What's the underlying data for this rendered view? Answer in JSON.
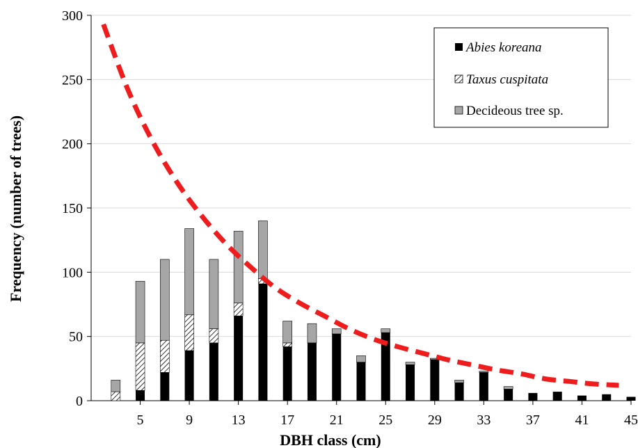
{
  "chart_data": {
    "type": "bar",
    "stacked": true,
    "xlabel": "DBH class (cm)",
    "ylabel": "Frequency (number of trees)",
    "ylim": [
      0,
      300
    ],
    "y_ticks": [
      0,
      50,
      100,
      150,
      200,
      250,
      300
    ],
    "x_tick_labels": [
      "5",
      "9",
      "13",
      "17",
      "21",
      "25",
      "29",
      "33",
      "37",
      "41",
      "45"
    ],
    "categories": [
      3,
      5,
      7,
      9,
      11,
      13,
      15,
      17,
      19,
      21,
      23,
      25,
      27,
      29,
      31,
      33,
      35,
      37,
      39,
      41,
      43,
      45
    ],
    "grid": "horizontal",
    "legend_position": "top-right",
    "series": [
      {
        "name": "Abies koreana",
        "italic": true,
        "pattern": "solid",
        "color": "#000000",
        "values": [
          0,
          8,
          22,
          39,
          45,
          66,
          91,
          42,
          45,
          52,
          30,
          53,
          28,
          32,
          14,
          22,
          9,
          6,
          7,
          4,
          5,
          3
        ]
      },
      {
        "name": "Taxus cuspitata",
        "italic": true,
        "pattern": "hatch",
        "color": "#ffffff",
        "values": [
          7,
          37,
          25,
          28,
          11,
          10,
          4,
          3,
          0,
          0,
          0,
          0,
          0,
          0,
          0,
          0,
          0,
          0,
          0,
          0,
          0,
          0
        ]
      },
      {
        "name": "Decideous tree sp.",
        "italic": false,
        "pattern": "solid",
        "color": "#a6a6a6",
        "values": [
          9,
          48,
          63,
          67,
          54,
          56,
          45,
          17,
          15,
          4,
          5,
          3,
          2,
          1,
          2,
          1,
          2,
          0,
          0,
          0,
          0,
          0
        ]
      }
    ],
    "trend_line": {
      "style": "dashed",
      "color": "#ee1c1c",
      "x": [
        2,
        4,
        6,
        8,
        10,
        12,
        14,
        16,
        18,
        20,
        22,
        24,
        26,
        28,
        30,
        32,
        34,
        36,
        38,
        40,
        42,
        44
      ],
      "y": [
        293,
        242,
        202,
        170,
        144,
        122,
        104,
        88,
        76,
        66,
        56,
        48,
        42,
        37,
        32,
        28,
        24,
        21,
        17,
        15,
        13,
        12
      ]
    }
  }
}
